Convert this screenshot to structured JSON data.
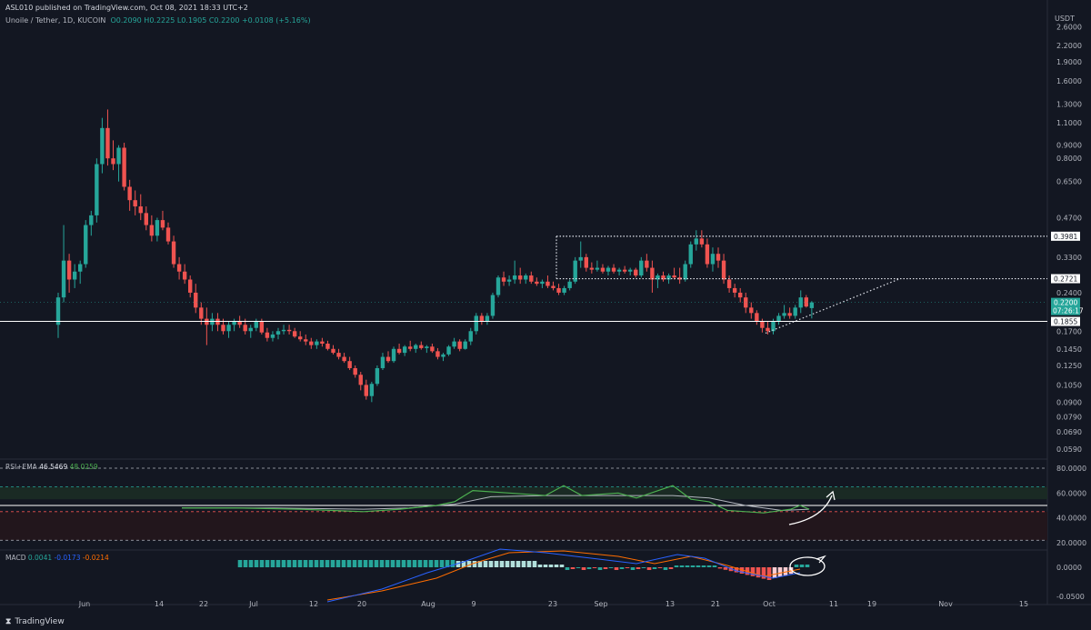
{
  "header": {
    "publisher_line": "ASL010 published on TradingView.com, Oct 08, 2021 18:33 UTC+2"
  },
  "legend": {
    "symbol": "Unoile / Tether, 1D, KUCOIN",
    "ohlc": "O0.2090  H0.2225  L0.1905  C0.2200  +0.0108 (+5.16%)",
    "currency": "USDT"
  },
  "rsi_legend": {
    "label": "RSI+EMA",
    "rsi_value": "46.5469",
    "ema_value": "48.0259"
  },
  "macd_legend": {
    "label": "MACD",
    "v1": "0.0041",
    "v2": "-0.0173",
    "v3": "-0.0214"
  },
  "footer": {
    "brand": "TradingView"
  },
  "price_labels": {
    "resistance_top": "0.3981",
    "resistance_mid": "0.2721",
    "current": "0.2200",
    "countdown": "07:26:17",
    "support": "0.1855"
  },
  "colors": {
    "bg": "#131722",
    "up": "#26a69a",
    "down": "#ef5350",
    "grid": "#1e222d",
    "rsi": "#4caf50",
    "ema": "#b2b5be",
    "macd": "#2962ff",
    "signal": "#ff6d00"
  },
  "chart_data": {
    "type": "candlestick",
    "x_ticks": [
      "Jun",
      "14",
      "22",
      "Jul",
      "12",
      "20",
      "Aug",
      "9",
      "23",
      "Sep",
      "13",
      "21",
      "Oct",
      "11",
      "19",
      "Nov",
      "15"
    ],
    "y_scale": "log",
    "y_ticks": [
      "2.6000",
      "2.2000",
      "1.9000",
      "1.6000",
      "1.3000",
      "1.1000",
      "0.9000",
      "0.8000",
      "0.6500",
      "0.4700",
      "0.3300",
      "0.2400",
      "0.1700",
      "0.1450",
      "0.1250",
      "0.1050",
      "0.0900",
      "0.0790",
      "0.0690",
      "0.0590"
    ],
    "candles": [
      [
        0.18,
        0.24,
        0.16,
        0.23
      ],
      [
        0.23,
        0.44,
        0.22,
        0.32
      ],
      [
        0.32,
        0.34,
        0.24,
        0.27
      ],
      [
        0.27,
        0.31,
        0.25,
        0.29
      ],
      [
        0.29,
        0.32,
        0.26,
        0.31
      ],
      [
        0.31,
        0.46,
        0.3,
        0.44
      ],
      [
        0.44,
        0.5,
        0.4,
        0.48
      ],
      [
        0.48,
        0.8,
        0.45,
        0.76
      ],
      [
        0.76,
        1.15,
        0.7,
        1.05
      ],
      [
        1.05,
        1.24,
        0.75,
        0.8
      ],
      [
        0.8,
        0.94,
        0.72,
        0.76
      ],
      [
        0.76,
        0.9,
        0.65,
        0.88
      ],
      [
        0.88,
        0.92,
        0.6,
        0.62
      ],
      [
        0.62,
        0.66,
        0.5,
        0.55
      ],
      [
        0.55,
        0.6,
        0.48,
        0.52
      ],
      [
        0.52,
        0.58,
        0.46,
        0.49
      ],
      [
        0.49,
        0.52,
        0.42,
        0.44
      ],
      [
        0.44,
        0.48,
        0.38,
        0.4
      ],
      [
        0.4,
        0.47,
        0.38,
        0.46
      ],
      [
        0.46,
        0.5,
        0.42,
        0.43
      ],
      [
        0.43,
        0.45,
        0.37,
        0.38
      ],
      [
        0.38,
        0.4,
        0.3,
        0.31
      ],
      [
        0.31,
        0.33,
        0.27,
        0.29
      ],
      [
        0.29,
        0.31,
        0.26,
        0.27
      ],
      [
        0.27,
        0.28,
        0.23,
        0.24
      ],
      [
        0.24,
        0.26,
        0.2,
        0.21
      ],
      [
        0.21,
        0.22,
        0.18,
        0.19
      ],
      [
        0.19,
        0.21,
        0.15,
        0.18
      ],
      [
        0.18,
        0.2,
        0.17,
        0.19
      ],
      [
        0.19,
        0.2,
        0.17,
        0.18
      ],
      [
        0.18,
        0.19,
        0.165,
        0.17
      ],
      [
        0.17,
        0.185,
        0.16,
        0.18
      ],
      [
        0.18,
        0.19,
        0.17,
        0.185
      ],
      [
        0.185,
        0.195,
        0.175,
        0.18
      ],
      [
        0.18,
        0.19,
        0.165,
        0.17
      ],
      [
        0.17,
        0.18,
        0.16,
        0.175
      ],
      [
        0.175,
        0.19,
        0.17,
        0.185
      ],
      [
        0.185,
        0.19,
        0.165,
        0.168
      ],
      [
        0.168,
        0.175,
        0.155,
        0.16
      ],
      [
        0.16,
        0.17,
        0.155,
        0.165
      ],
      [
        0.165,
        0.175,
        0.158,
        0.17
      ],
      [
        0.17,
        0.18,
        0.165,
        0.172
      ],
      [
        0.172,
        0.18,
        0.165,
        0.17
      ],
      [
        0.17,
        0.175,
        0.16,
        0.162
      ],
      [
        0.162,
        0.17,
        0.155,
        0.158
      ],
      [
        0.158,
        0.165,
        0.15,
        0.155
      ],
      [
        0.155,
        0.16,
        0.145,
        0.15
      ],
      [
        0.15,
        0.158,
        0.145,
        0.155
      ],
      [
        0.155,
        0.16,
        0.148,
        0.152
      ],
      [
        0.152,
        0.156,
        0.143,
        0.145
      ],
      [
        0.145,
        0.15,
        0.138,
        0.14
      ],
      [
        0.14,
        0.145,
        0.132,
        0.135
      ],
      [
        0.135,
        0.14,
        0.128,
        0.13
      ],
      [
        0.13,
        0.135,
        0.12,
        0.122
      ],
      [
        0.122,
        0.125,
        0.112,
        0.115
      ],
      [
        0.115,
        0.118,
        0.1,
        0.105
      ],
      [
        0.105,
        0.11,
        0.092,
        0.095
      ],
      [
        0.095,
        0.108,
        0.09,
        0.106
      ],
      [
        0.106,
        0.125,
        0.104,
        0.122
      ],
      [
        0.122,
        0.14,
        0.12,
        0.135
      ],
      [
        0.135,
        0.142,
        0.128,
        0.13
      ],
      [
        0.13,
        0.148,
        0.128,
        0.145
      ],
      [
        0.145,
        0.152,
        0.138,
        0.14
      ],
      [
        0.14,
        0.15,
        0.136,
        0.148
      ],
      [
        0.148,
        0.156,
        0.142,
        0.145
      ],
      [
        0.145,
        0.152,
        0.14,
        0.15
      ],
      [
        0.15,
        0.155,
        0.144,
        0.146
      ],
      [
        0.146,
        0.15,
        0.14,
        0.148
      ],
      [
        0.148,
        0.152,
        0.14,
        0.142
      ],
      [
        0.142,
        0.146,
        0.132,
        0.135
      ],
      [
        0.135,
        0.14,
        0.13,
        0.138
      ],
      [
        0.138,
        0.15,
        0.136,
        0.148
      ],
      [
        0.148,
        0.16,
        0.145,
        0.155
      ],
      [
        0.155,
        0.158,
        0.142,
        0.145
      ],
      [
        0.145,
        0.158,
        0.144,
        0.155
      ],
      [
        0.155,
        0.175,
        0.15,
        0.17
      ],
      [
        0.17,
        0.2,
        0.165,
        0.195
      ],
      [
        0.195,
        0.2,
        0.18,
        0.185
      ],
      [
        0.185,
        0.2,
        0.18,
        0.195
      ],
      [
        0.195,
        0.24,
        0.19,
        0.235
      ],
      [
        0.235,
        0.28,
        0.23,
        0.275
      ],
      [
        0.275,
        0.29,
        0.255,
        0.265
      ],
      [
        0.265,
        0.28,
        0.255,
        0.27
      ],
      [
        0.27,
        0.32,
        0.26,
        0.28
      ],
      [
        0.28,
        0.3,
        0.26,
        0.27
      ],
      [
        0.27,
        0.285,
        0.26,
        0.28
      ],
      [
        0.28,
        0.29,
        0.26,
        0.265
      ],
      [
        0.265,
        0.275,
        0.255,
        0.26
      ],
      [
        0.26,
        0.27,
        0.25,
        0.265
      ],
      [
        0.265,
        0.28,
        0.25,
        0.255
      ],
      [
        0.255,
        0.265,
        0.245,
        0.25
      ],
      [
        0.25,
        0.26,
        0.235,
        0.24
      ],
      [
        0.24,
        0.255,
        0.235,
        0.25
      ],
      [
        0.25,
        0.27,
        0.245,
        0.265
      ],
      [
        0.265,
        0.33,
        0.26,
        0.32
      ],
      [
        0.32,
        0.38,
        0.3,
        0.33
      ],
      [
        0.33,
        0.34,
        0.29,
        0.3
      ],
      [
        0.3,
        0.315,
        0.285,
        0.295
      ],
      [
        0.295,
        0.32,
        0.29,
        0.3
      ],
      [
        0.3,
        0.31,
        0.285,
        0.29
      ],
      [
        0.29,
        0.305,
        0.28,
        0.3
      ],
      [
        0.3,
        0.31,
        0.285,
        0.29
      ],
      [
        0.29,
        0.3,
        0.28,
        0.295
      ],
      [
        0.295,
        0.305,
        0.285,
        0.29
      ],
      [
        0.29,
        0.3,
        0.28,
        0.295
      ],
      [
        0.295,
        0.3,
        0.275,
        0.28
      ],
      [
        0.28,
        0.33,
        0.275,
        0.32
      ],
      [
        0.32,
        0.34,
        0.29,
        0.3
      ],
      [
        0.3,
        0.32,
        0.24,
        0.27
      ],
      [
        0.27,
        0.285,
        0.25,
        0.28
      ],
      [
        0.28,
        0.29,
        0.265,
        0.27
      ],
      [
        0.27,
        0.285,
        0.26,
        0.28
      ],
      [
        0.28,
        0.3,
        0.27,
        0.275
      ],
      [
        0.275,
        0.3,
        0.26,
        0.27
      ],
      [
        0.27,
        0.32,
        0.265,
        0.31
      ],
      [
        0.31,
        0.38,
        0.3,
        0.37
      ],
      [
        0.37,
        0.42,
        0.35,
        0.39
      ],
      [
        0.39,
        0.42,
        0.36,
        0.37
      ],
      [
        0.37,
        0.39,
        0.3,
        0.31
      ],
      [
        0.31,
        0.36,
        0.29,
        0.34
      ],
      [
        0.34,
        0.36,
        0.3,
        0.32
      ],
      [
        0.32,
        0.34,
        0.26,
        0.27
      ],
      [
        0.27,
        0.28,
        0.24,
        0.25
      ],
      [
        0.25,
        0.26,
        0.23,
        0.24
      ],
      [
        0.24,
        0.25,
        0.22,
        0.23
      ],
      [
        0.23,
        0.24,
        0.2,
        0.21
      ],
      [
        0.21,
        0.22,
        0.19,
        0.2
      ],
      [
        0.2,
        0.205,
        0.18,
        0.185
      ],
      [
        0.185,
        0.19,
        0.168,
        0.175
      ],
      [
        0.175,
        0.185,
        0.165,
        0.17
      ],
      [
        0.17,
        0.19,
        0.165,
        0.185
      ],
      [
        0.185,
        0.2,
        0.18,
        0.195
      ],
      [
        0.195,
        0.215,
        0.19,
        0.2
      ],
      [
        0.2,
        0.21,
        0.19,
        0.195
      ],
      [
        0.195,
        0.215,
        0.19,
        0.21
      ],
      [
        0.21,
        0.245,
        0.2,
        0.23
      ],
      [
        0.23,
        0.235,
        0.21,
        0.212
      ],
      [
        0.209,
        0.2225,
        0.1905,
        0.22
      ]
    ],
    "rsi_ylim": [
      20,
      80
    ],
    "rsi_ticks": [
      "80.0000",
      "60.0000",
      "40.0000",
      "20.0000"
    ],
    "macd_ticks": [
      "0.0000",
      "-0.0500"
    ]
  }
}
